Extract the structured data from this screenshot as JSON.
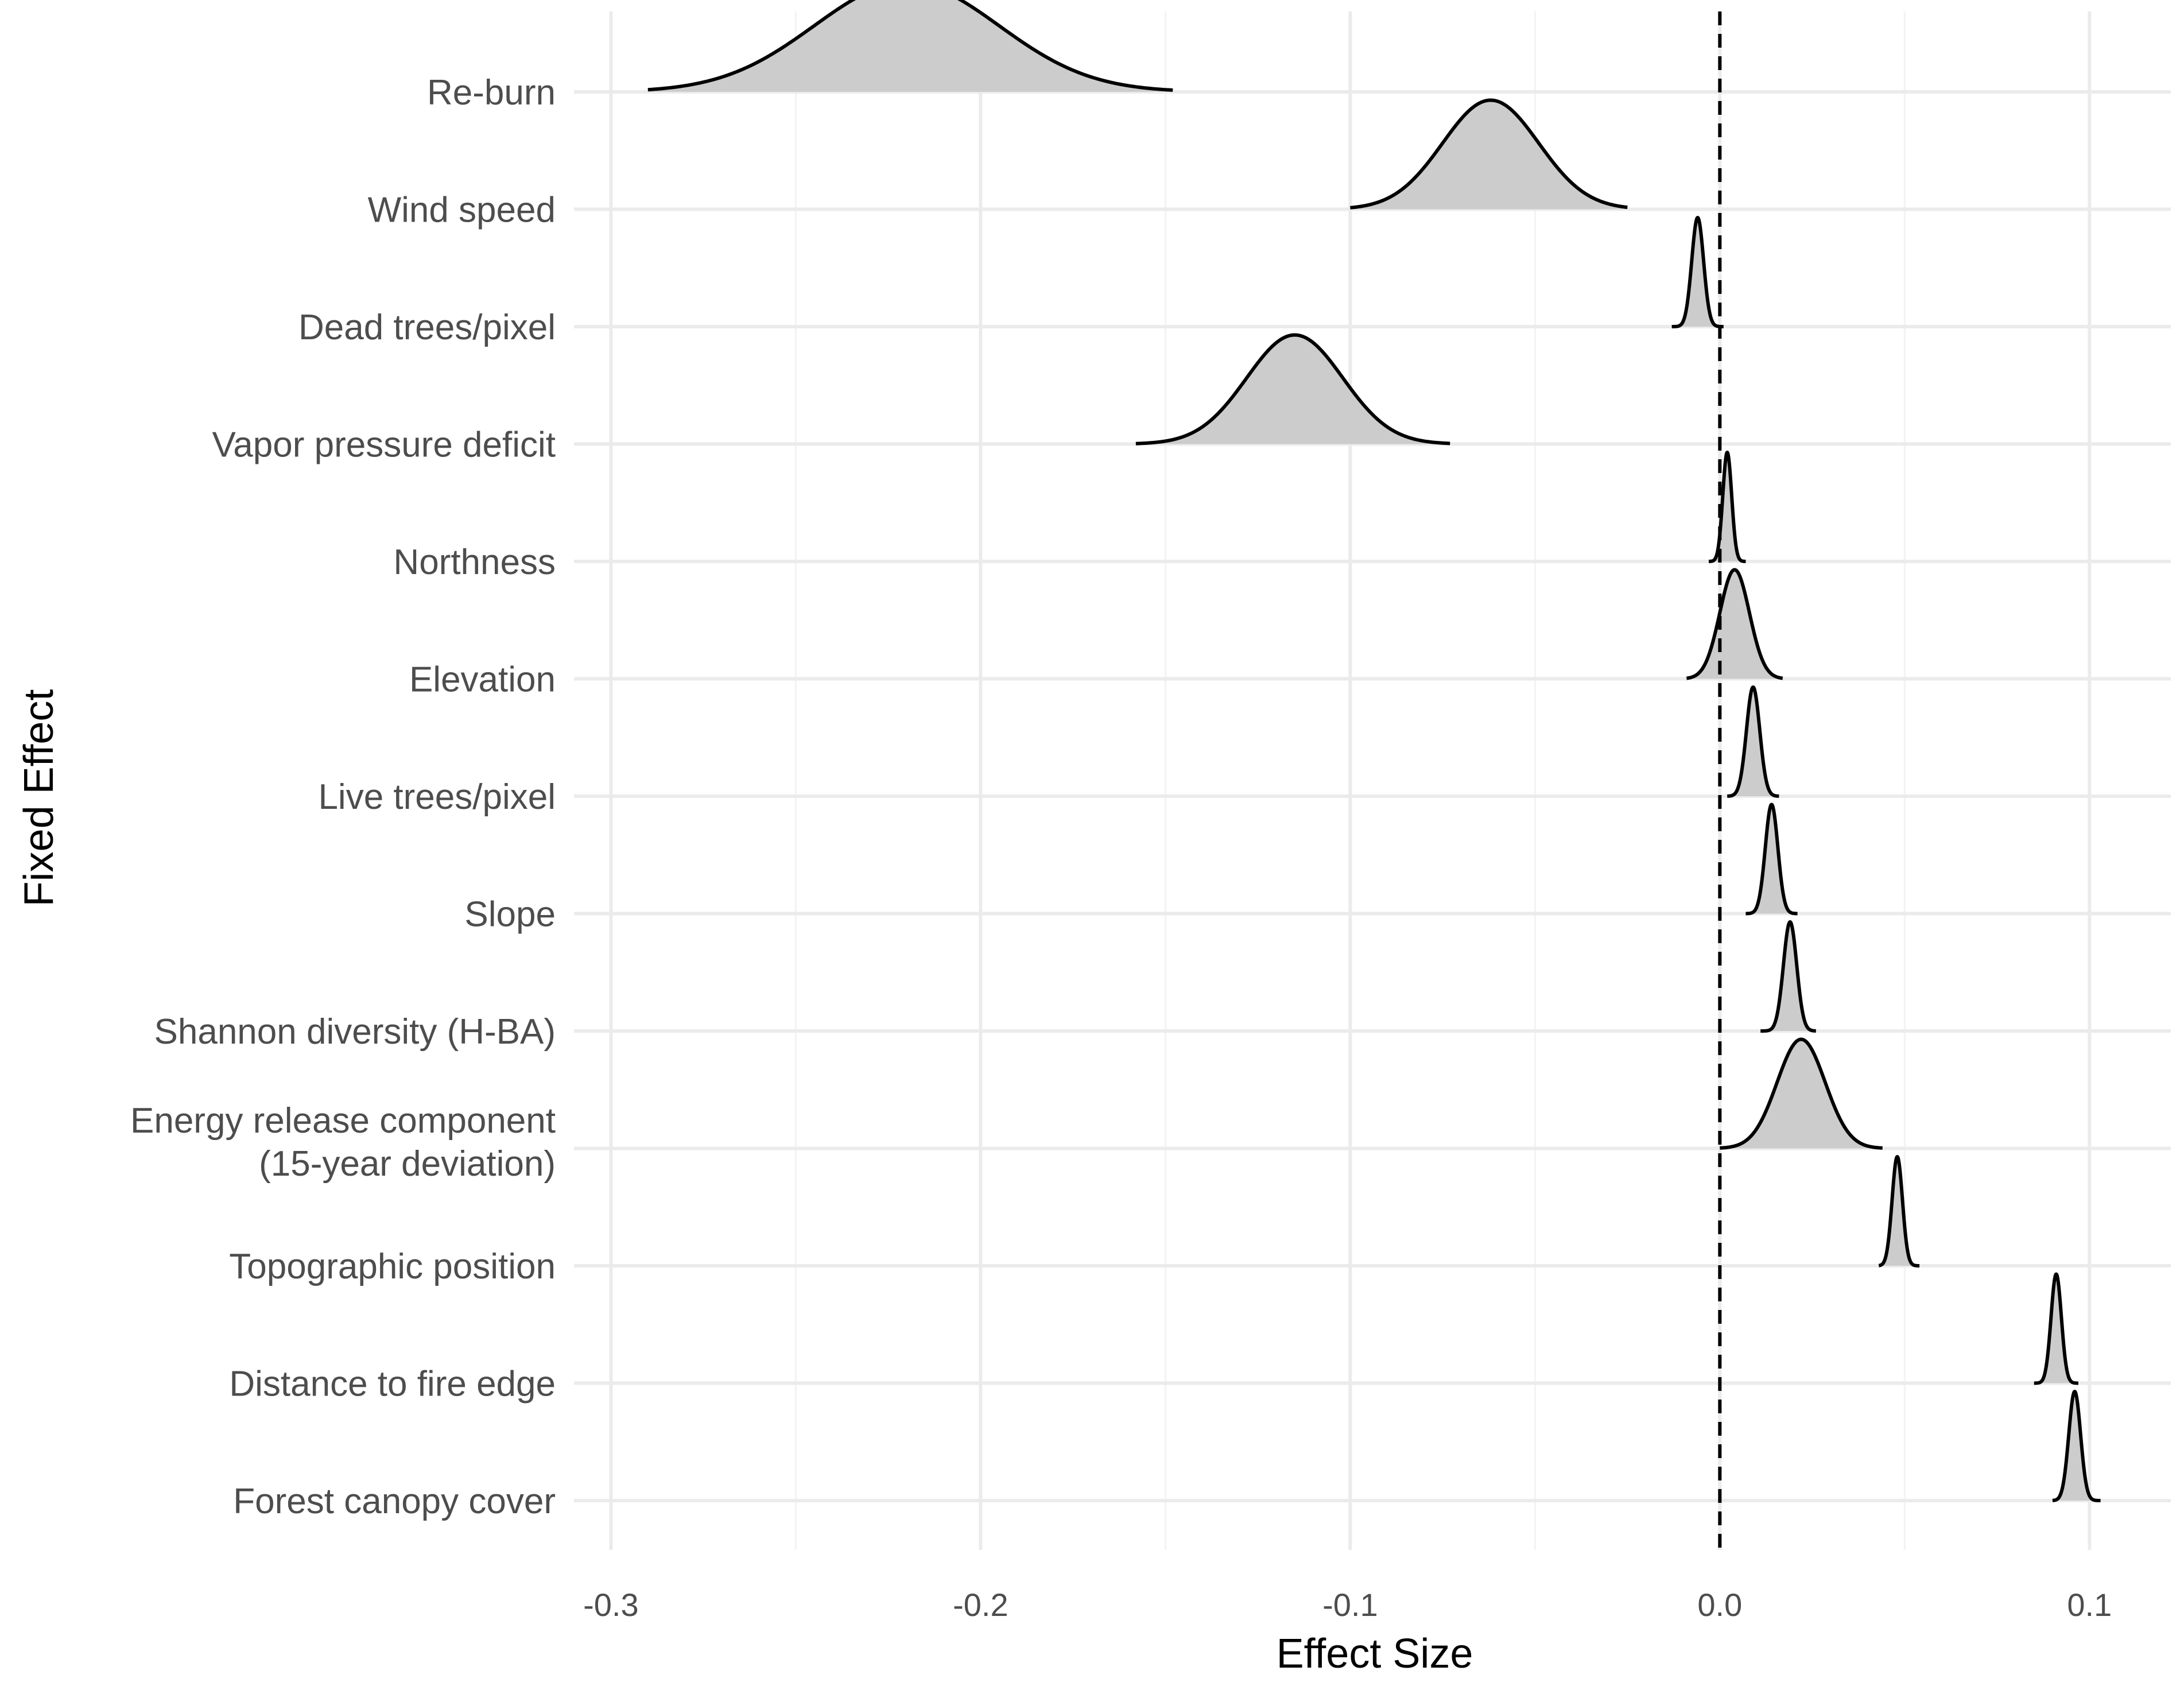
{
  "chart_data": {
    "type": "ridgeline",
    "title": "",
    "xlabel": "Effect Size",
    "ylabel": "Fixed Effect",
    "xlim": [
      -0.31,
      0.122
    ],
    "x_ticks": [
      -0.3,
      -0.2,
      -0.1,
      0.0,
      0.1
    ],
    "x_tick_labels": [
      "-0.3",
      "-0.2",
      "-0.1",
      "0.0",
      "0.1"
    ],
    "reference_line": {
      "x": 0,
      "style": "dashed"
    },
    "grid": true,
    "series": [
      {
        "label": "Re-burn",
        "mean": -0.22,
        "sd": 0.025,
        "min": -0.29,
        "max": -0.148
      },
      {
        "label": "Wind speed",
        "mean": -0.062,
        "sd": 0.013,
        "min": -0.1,
        "max": -0.025
      },
      {
        "label": "Dead trees/pixel",
        "mean": -0.006,
        "sd": 0.0016,
        "min": -0.013,
        "max": 0.001
      },
      {
        "label": "Vapor pressure deficit",
        "mean": -0.115,
        "sd": 0.013,
        "min": -0.158,
        "max": -0.073
      },
      {
        "label": "Northness",
        "mean": 0.002,
        "sd": 0.0012,
        "min": -0.003,
        "max": 0.007
      },
      {
        "label": "Elevation",
        "mean": 0.004,
        "sd": 0.004,
        "min": -0.009,
        "max": 0.017
      },
      {
        "label": "Live trees/pixel",
        "mean": 0.009,
        "sd": 0.0018,
        "min": 0.002,
        "max": 0.016
      },
      {
        "label": "Slope",
        "mean": 0.014,
        "sd": 0.0017,
        "min": 0.007,
        "max": 0.021
      },
      {
        "label": "Shannon diversity (H-BA)",
        "mean": 0.019,
        "sd": 0.0018,
        "min": 0.011,
        "max": 0.026
      },
      {
        "label": "Energy release component\n(15-year deviation)",
        "mean": 0.022,
        "sd": 0.0065,
        "min": 0.0,
        "max": 0.044
      },
      {
        "label": "Topographic position",
        "mean": 0.048,
        "sd": 0.0014,
        "min": 0.043,
        "max": 0.054
      },
      {
        "label": "Distance to fire edge",
        "mean": 0.091,
        "sd": 0.0014,
        "min": 0.085,
        "max": 0.097
      },
      {
        "label": "Forest canopy cover",
        "mean": 0.096,
        "sd": 0.0016,
        "min": 0.09,
        "max": 0.103
      }
    ]
  }
}
